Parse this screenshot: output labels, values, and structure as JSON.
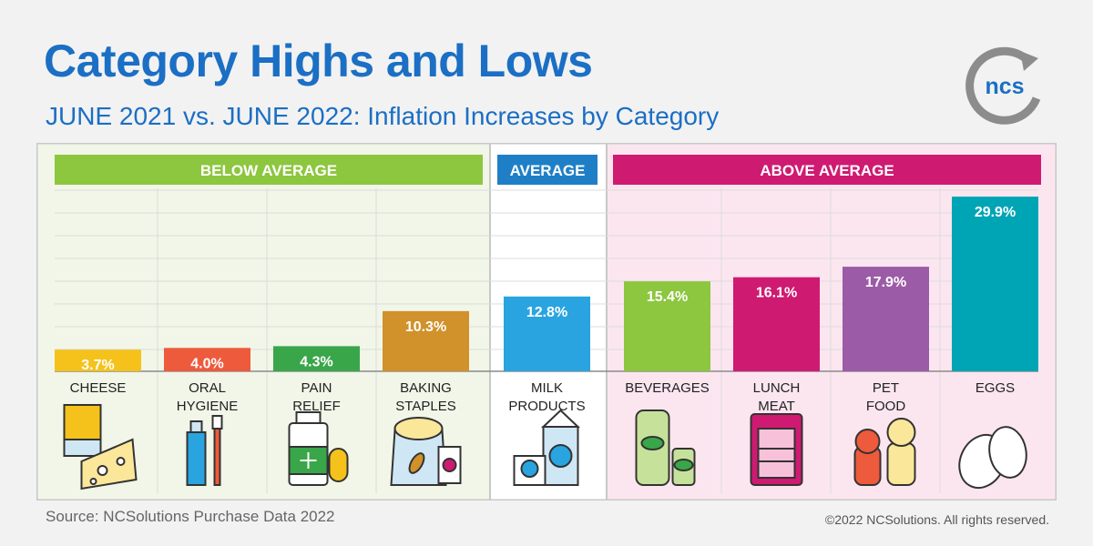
{
  "header": {
    "title": "Category Highs and Lows",
    "subtitle": "JUNE 2021 vs. JUNE 2022: Inflation Increases by Category",
    "logo_text": "ncs"
  },
  "footer": {
    "source": "Source: NCSolutions Purchase Data 2022",
    "copyright": "©2022 NCSolutions. All rights reserved."
  },
  "colors": {
    "title": "#1b6fc4",
    "below_bg": "#f1f6e8",
    "avg_bg": "#ffffff",
    "above_bg": "#fbe6f0",
    "below_banner": "#8dc63f",
    "avg_banner": "#1f7fc6",
    "above_banner": "#cf1a72"
  },
  "chart_data": {
    "type": "bar",
    "title": "Category Highs and Lows",
    "subtitle": "JUNE 2021 vs. JUNE 2022: Inflation Increases by Category",
    "ylim": [
      0,
      31
    ],
    "grid": true,
    "groups": [
      {
        "label": "BELOW AVERAGE",
        "categories": [
          0,
          1,
          2,
          3
        ]
      },
      {
        "label": "AVERAGE",
        "categories": [
          4
        ]
      },
      {
        "label": "ABOVE AVERAGE",
        "categories": [
          5,
          6,
          7,
          8
        ]
      }
    ],
    "categories": [
      {
        "name": [
          "CHEESE"
        ],
        "value": 3.7,
        "label": "3.7%",
        "color": "#f5c21b",
        "icon": "cheese-icon"
      },
      {
        "name": [
          "ORAL",
          "HYGIENE"
        ],
        "value": 4.0,
        "label": "4.0%",
        "color": "#ee5a3c",
        "icon": "toothpaste-icon"
      },
      {
        "name": [
          "PAIN",
          "RELIEF"
        ],
        "value": 4.3,
        "label": "4.3%",
        "color": "#3aa64a",
        "icon": "medicine-bottle-icon"
      },
      {
        "name": [
          "BAKING",
          "STAPLES"
        ],
        "value": 10.3,
        "label": "10.3%",
        "color": "#d1912b",
        "icon": "flour-bag-icon"
      },
      {
        "name": [
          "MILK",
          "PRODUCTS"
        ],
        "value": 12.8,
        "label": "12.8%",
        "color": "#29a4e0",
        "icon": "milk-carton-icon"
      },
      {
        "name": [
          "BEVERAGES"
        ],
        "value": 15.4,
        "label": "15.4%",
        "color": "#8dc63f",
        "icon": "beverage-bottle-icon"
      },
      {
        "name": [
          "LUNCH",
          "MEAT"
        ],
        "value": 16.1,
        "label": "16.1%",
        "color": "#cf1a72",
        "icon": "lunch-meat-icon"
      },
      {
        "name": [
          "PET",
          "FOOD"
        ],
        "value": 17.9,
        "label": "17.9%",
        "color": "#9c5ba6",
        "icon": "cat-dog-icon"
      },
      {
        "name": [
          "EGGS"
        ],
        "value": 29.9,
        "label": "29.9%",
        "color": "#00a5b5",
        "icon": "eggs-icon"
      }
    ]
  }
}
